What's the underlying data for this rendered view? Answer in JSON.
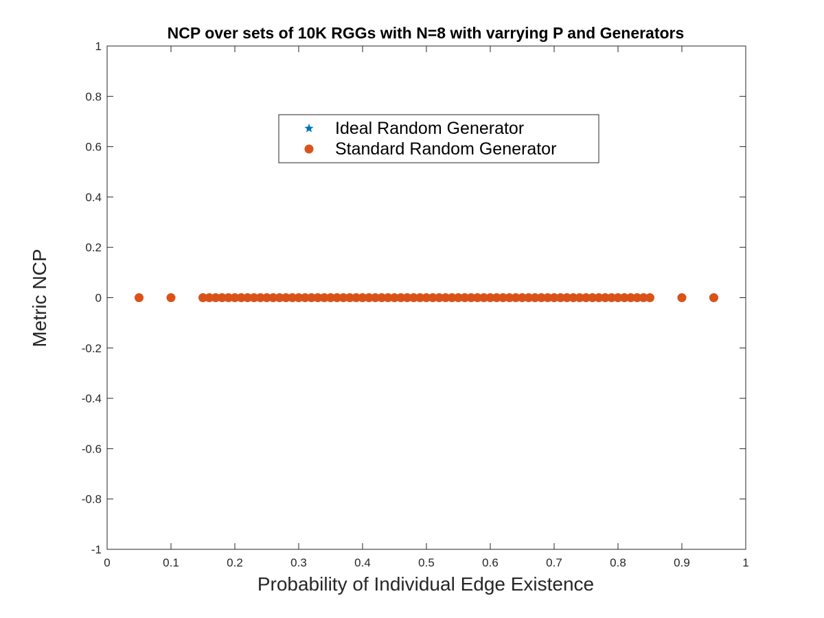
{
  "chart_data": {
    "type": "scatter",
    "title": "NCP over sets of 10K RGGs with N=8 with varrying P and Generators",
    "xlabel": "Probability of Individual Edge Existence",
    "ylabel": "Metric NCP",
    "xlim": [
      0,
      1
    ],
    "ylim": [
      -1,
      1
    ],
    "xticks": [
      "0",
      "0.1",
      "0.2",
      "0.3",
      "0.4",
      "0.5",
      "0.6",
      "0.7",
      "0.8",
      "0.9",
      "1"
    ],
    "yticks": [
      "-1",
      "-0.8",
      "-0.6",
      "-0.4",
      "-0.2",
      "0",
      "0.2",
      "0.4",
      "0.6",
      "0.8",
      "1"
    ],
    "grid": false,
    "legend_position": "top-center",
    "series": [
      {
        "name": "Ideal Random Generator",
        "marker": "star",
        "color": "#0072BD",
        "x": [
          0.05,
          0.1,
          0.15,
          0.16,
          0.17,
          0.18,
          0.19,
          0.2,
          0.21,
          0.22,
          0.23,
          0.24,
          0.25,
          0.26,
          0.27,
          0.28,
          0.29,
          0.3,
          0.31,
          0.32,
          0.33,
          0.34,
          0.35,
          0.36,
          0.37,
          0.38,
          0.39,
          0.4,
          0.41,
          0.42,
          0.43,
          0.44,
          0.45,
          0.46,
          0.47,
          0.48,
          0.49,
          0.5,
          0.51,
          0.52,
          0.53,
          0.54,
          0.55,
          0.56,
          0.57,
          0.58,
          0.59,
          0.6,
          0.61,
          0.62,
          0.63,
          0.64,
          0.65,
          0.66,
          0.67,
          0.68,
          0.69,
          0.7,
          0.71,
          0.72,
          0.73,
          0.74,
          0.75,
          0.76,
          0.77,
          0.78,
          0.79,
          0.8,
          0.81,
          0.82,
          0.83,
          0.84,
          0.85,
          0.9,
          0.95
        ],
        "y": [
          0,
          0,
          0,
          0,
          0,
          0,
          0,
          0,
          0,
          0,
          0,
          0,
          0,
          0,
          0,
          0,
          0,
          0,
          0,
          0,
          0,
          0,
          0,
          0,
          0,
          0,
          0,
          0,
          0,
          0,
          0,
          0,
          0,
          0,
          0,
          0,
          0,
          0,
          0,
          0,
          0,
          0,
          0,
          0,
          0,
          0,
          0,
          0,
          0,
          0,
          0,
          0,
          0,
          0,
          0,
          0,
          0,
          0,
          0,
          0,
          0,
          0,
          0,
          0,
          0,
          0,
          0,
          0,
          0,
          0,
          0,
          0,
          0,
          0,
          0
        ]
      },
      {
        "name": "Standard Random Generator",
        "marker": "circle",
        "color": "#D95319",
        "x": [
          0.05,
          0.1,
          0.15,
          0.16,
          0.17,
          0.18,
          0.19,
          0.2,
          0.21,
          0.22,
          0.23,
          0.24,
          0.25,
          0.26,
          0.27,
          0.28,
          0.29,
          0.3,
          0.31,
          0.32,
          0.33,
          0.34,
          0.35,
          0.36,
          0.37,
          0.38,
          0.39,
          0.4,
          0.41,
          0.42,
          0.43,
          0.44,
          0.45,
          0.46,
          0.47,
          0.48,
          0.49,
          0.5,
          0.51,
          0.52,
          0.53,
          0.54,
          0.55,
          0.56,
          0.57,
          0.58,
          0.59,
          0.6,
          0.61,
          0.62,
          0.63,
          0.64,
          0.65,
          0.66,
          0.67,
          0.68,
          0.69,
          0.7,
          0.71,
          0.72,
          0.73,
          0.74,
          0.75,
          0.76,
          0.77,
          0.78,
          0.79,
          0.8,
          0.81,
          0.82,
          0.83,
          0.84,
          0.85,
          0.9,
          0.95
        ],
        "y": [
          0,
          0,
          0,
          0,
          0,
          0,
          0,
          0,
          0,
          0,
          0,
          0,
          0,
          0,
          0,
          0,
          0,
          0,
          0,
          0,
          0,
          0,
          0,
          0,
          0,
          0,
          0,
          0,
          0,
          0,
          0,
          0,
          0,
          0,
          0,
          0,
          0,
          0,
          0,
          0,
          0,
          0,
          0,
          0,
          0,
          0,
          0,
          0,
          0,
          0,
          0,
          0,
          0,
          0,
          0,
          0,
          0,
          0,
          0,
          0,
          0,
          0,
          0,
          0,
          0,
          0,
          0,
          0,
          0,
          0,
          0,
          0,
          0,
          0,
          0
        ]
      }
    ]
  }
}
